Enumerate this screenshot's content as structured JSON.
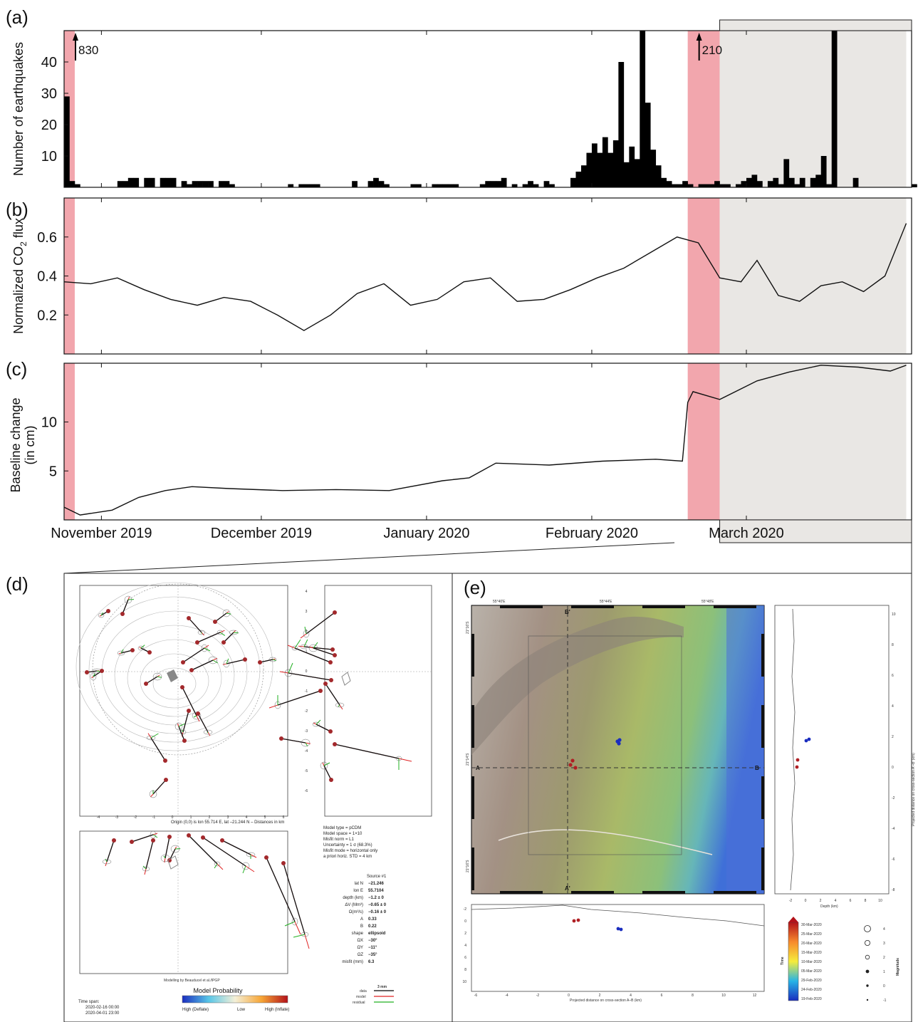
{
  "panels": {
    "a": "(a)",
    "b": "(b)",
    "c": "(c)",
    "d": "(d)",
    "e": "(e)"
  },
  "colors": {
    "pink": "#f2a6ad",
    "grey_window": "#e9e7e4",
    "bar": "#000000",
    "line": "#111111"
  },
  "chart_data": [
    {
      "type": "bar",
      "panel": "a",
      "ylabel": "Number of earthquakes",
      "ylim": [
        0,
        50
      ],
      "yticks": [
        10,
        20,
        30,
        40
      ],
      "x_start": "2019-10-25",
      "x_end": "2020-03-31",
      "x_ticks": [
        {
          "label": "November 2019",
          "date": "2019-11-01"
        },
        {
          "label": "December 2019",
          "date": "2019-12-01"
        },
        {
          "label": "January 2020",
          "date": "2020-01-01"
        },
        {
          "label": "February 2020",
          "date": "2020-02-01"
        },
        {
          "label": "March 2020",
          "date": "2020-03-01"
        }
      ],
      "daily_counts": [
        29,
        2,
        1,
        0,
        0,
        0,
        0,
        0,
        0,
        0,
        2,
        2,
        3,
        3,
        0,
        3,
        3,
        0,
        3,
        3,
        3,
        0,
        2,
        1,
        2,
        2,
        2,
        2,
        0,
        2,
        2,
        1,
        0,
        0,
        0,
        0,
        0,
        0,
        0,
        0,
        0,
        0,
        1,
        0,
        1,
        1,
        1,
        1,
        0,
        0,
        0,
        0,
        0,
        0,
        2,
        0,
        0,
        2,
        3,
        2,
        1,
        0,
        0,
        0,
        0,
        1,
        1,
        0,
        0,
        1,
        1,
        1,
        1,
        1,
        0,
        0,
        0,
        0,
        1,
        2,
        2,
        2,
        3,
        0,
        1,
        0,
        1,
        2,
        1,
        0,
        2,
        1,
        0,
        0,
        0,
        3,
        5,
        7,
        11,
        14,
        11,
        16,
        11,
        15,
        40,
        8,
        13,
        9,
        50,
        27,
        12,
        7,
        3,
        2,
        1,
        1,
        2,
        1,
        0,
        1,
        1,
        1,
        2,
        1,
        1,
        0,
        1,
        2,
        3,
        4,
        2,
        0,
        2,
        3,
        1,
        9,
        3,
        1,
        3,
        0,
        3,
        4,
        10,
        1,
        50,
        0,
        0,
        0,
        3,
        0,
        0,
        0,
        0,
        0,
        0,
        0,
        0,
        0,
        0,
        1,
        0,
        0,
        0,
        0,
        0,
        0,
        0,
        0,
        0,
        0,
        0,
        1,
        0,
        0,
        0,
        0,
        0,
        0,
        1,
        0,
        0,
        0,
        0,
        0,
        0,
        0,
        0,
        0,
        0,
        0,
        0,
        1,
        1,
        2,
        2,
        0,
        2,
        1,
        0,
        0,
        0,
        0,
        0,
        0,
        0,
        0,
        0,
        0,
        1,
        0,
        0,
        0,
        0,
        0,
        0,
        0,
        0,
        0,
        1,
        0,
        0,
        2,
        3,
        7,
        12
      ],
      "annotations": [
        {
          "text": "830",
          "date": "2019-10-25"
        },
        {
          "text": "210",
          "date": "2020-02-19"
        }
      ],
      "highlights": [
        {
          "kind": "pink",
          "from": "2019-10-25",
          "to": "2019-10-27"
        },
        {
          "kind": "pink",
          "from": "2020-02-19",
          "to": "2020-02-25"
        },
        {
          "kind": "grey",
          "from": "2020-02-25",
          "to": "2020-03-31"
        }
      ]
    },
    {
      "type": "line",
      "panel": "b",
      "ylabel": "Normalized CO",
      "ylabel_sub": "2",
      "ylabel_suffix": " flux",
      "ylim": [
        0.0,
        0.8
      ],
      "yticks": [
        0.2,
        0.4,
        0.6
      ],
      "x": [
        "2019-10-25",
        "2019-10-30",
        "2019-11-04",
        "2019-11-09",
        "2019-11-14",
        "2019-11-19",
        "2019-11-24",
        "2019-11-29",
        "2019-12-04",
        "2019-12-09",
        "2019-12-14",
        "2019-12-19",
        "2019-12-24",
        "2019-12-29",
        "2020-01-03",
        "2020-01-08",
        "2020-01-13",
        "2020-01-18",
        "2020-01-23",
        "2020-01-28",
        "2020-02-02",
        "2020-02-07",
        "2020-02-12",
        "2020-02-17",
        "2020-02-21",
        "2020-02-25",
        "2020-02-29",
        "2020-03-03",
        "2020-03-07",
        "2020-03-11",
        "2020-03-15",
        "2020-03-19",
        "2020-03-23",
        "2020-03-27",
        "2020-03-31"
      ],
      "y": [
        0.37,
        0.36,
        0.39,
        0.33,
        0.28,
        0.25,
        0.29,
        0.27,
        0.2,
        0.12,
        0.2,
        0.31,
        0.36,
        0.25,
        0.28,
        0.37,
        0.39,
        0.27,
        0.28,
        0.33,
        0.39,
        0.44,
        0.52,
        0.6,
        0.57,
        0.39,
        0.37,
        0.48,
        0.3,
        0.27,
        0.35,
        0.37,
        0.32,
        0.4,
        0.67
      ],
      "highlights": [
        {
          "kind": "pink",
          "from": "2019-10-25",
          "to": "2019-10-27"
        },
        {
          "kind": "pink",
          "from": "2020-02-19",
          "to": "2020-02-25"
        },
        {
          "kind": "grey",
          "from": "2020-02-25",
          "to": "2020-03-31"
        }
      ]
    },
    {
      "type": "line",
      "panel": "c",
      "ylabel": "Baseline change",
      "ylabel2": "(in cm)",
      "ylim": [
        0,
        16
      ],
      "yticks": [
        5,
        10
      ],
      "x": [
        "2019-10-25",
        "2019-10-28",
        "2019-11-03",
        "2019-11-08",
        "2019-11-13",
        "2019-11-18",
        "2019-11-25",
        "2019-12-05",
        "2019-12-15",
        "2019-12-25",
        "2020-01-04",
        "2020-01-09",
        "2020-01-14",
        "2020-01-24",
        "2020-02-03",
        "2020-02-13",
        "2020-02-18",
        "2020-02-19",
        "2020-02-20",
        "2020-02-25",
        "2020-03-03",
        "2020-03-09",
        "2020-03-15",
        "2020-03-22",
        "2020-03-28",
        "2020-03-31"
      ],
      "y": [
        1.3,
        0.5,
        1.0,
        2.3,
        3.0,
        3.4,
        3.2,
        3.0,
        3.1,
        3.0,
        4.0,
        4.3,
        5.8,
        5.6,
        6.0,
        6.2,
        6.0,
        12.0,
        13.1,
        12.3,
        14.2,
        15.1,
        15.8,
        15.6,
        15.2,
        15.8
      ],
      "highlights": [
        {
          "kind": "pink",
          "from": "2019-10-25",
          "to": "2019-10-27"
        },
        {
          "kind": "pink",
          "from": "2020-02-19",
          "to": "2020-02-25"
        },
        {
          "kind": "grey",
          "from": "2020-02-25",
          "to": "2020-03-31"
        }
      ]
    }
  ],
  "panel_d": {
    "origin_text": "Origin (0,0) is lon 55.714 E, lat –21.244 N – Distances in km",
    "credit": "Modelling by Beauducel et al./IPGP",
    "model_info": [
      "Model type = pCDM",
      "Model space = 1×10",
      "Misfit norm = L1",
      "Uncertainty = 1 σ (68.3%)",
      "Misfit mode = horizontal only",
      "a priori horiz. STD = 4 km"
    ],
    "source_header": "Source #1",
    "source_table": [
      {
        "k": "lat N",
        "v": "−21.246"
      },
      {
        "k": "lon E",
        "v": "55.7104"
      },
      {
        "k": "depth (km)",
        "v": "−1.2 ± 0"
      },
      {
        "k": "ΔV (Mm³)",
        "v": "−0.65 ± 0"
      },
      {
        "k": "Ω(m³/s)",
        "v": "−0.16 ± 0"
      },
      {
        "k": "A",
        "v": "0.33"
      },
      {
        "k": "B",
        "v": "0.22"
      },
      {
        "k": "shape",
        "v": "ellipsoid"
      },
      {
        "k": "ΩX",
        "v": "−30°"
      },
      {
        "k": "ΩY",
        "v": "−11°"
      },
      {
        "k": "ΩZ",
        "v": "−35°"
      },
      {
        "k": "misfit (mm)",
        "v": "6.3"
      }
    ],
    "time_span_label": "Time span:",
    "time_span": [
      "2020-02-16 00:00",
      "2020-04-01 23:00"
    ],
    "probability_title": "Model Probability",
    "probability_labels": [
      "High (Deflate)",
      "Low",
      "High (Inflate)"
    ],
    "legend": {
      "scale": "3 mm",
      "data": "data",
      "model": "model",
      "residual": "residual"
    },
    "x_ticks": [
      "-4",
      "-3",
      "-2",
      "-1",
      "0",
      "1",
      "2",
      "3",
      "4",
      "5",
      "6"
    ],
    "y_ticks": [
      "4",
      "3",
      "2",
      "1",
      "0",
      "-1",
      "-2",
      "-3",
      "-4",
      "-5",
      "-6"
    ]
  },
  "panel_e": {
    "top_coords": [
      "55°40'E",
      "55°44'E",
      "55°48'E"
    ],
    "left_coords": [
      "21°16'S",
      "21°14'S",
      "21°16'S"
    ],
    "section_labels": {
      "A": "A",
      "B": "B",
      "A_prime": "A'",
      "B_prime": "B'"
    },
    "x_section_title": "Projected distance on cross-section A–B (km)",
    "x_section_ticks": [
      "-6",
      "-4",
      "-2",
      "0",
      "2",
      "4",
      "6",
      "8",
      "10",
      "12"
    ],
    "x_section_depth_ticks": [
      "-2",
      "0",
      "2",
      "4",
      "6",
      "8",
      "10"
    ],
    "right_section_title": "Projected distance on cross-section A'–B' (km)",
    "right_depth_label": "Depth (km)",
    "right_depth_ticks": [
      "-2",
      "0",
      "2",
      "4",
      "6",
      "8",
      "10"
    ],
    "right_dist_ticks": [
      "10",
      "8",
      "6",
      "4",
      "2",
      "0",
      "-2",
      "-4",
      "-6",
      "-8"
    ],
    "time_label": "Time",
    "time_ticks": [
      "30-Mar-2020",
      "25-Mar-2020",
      "20-Mar-2020",
      "15-Mar-2020",
      "10-Mar-2020",
      "05-Mar-2020",
      "29-Feb-2020",
      "24-Feb-2020",
      "19-Feb-2020"
    ],
    "magnitude_label": "Magnitude",
    "magnitude_ticks": [
      "4",
      "3",
      "2",
      "1",
      "0",
      "-1"
    ]
  }
}
